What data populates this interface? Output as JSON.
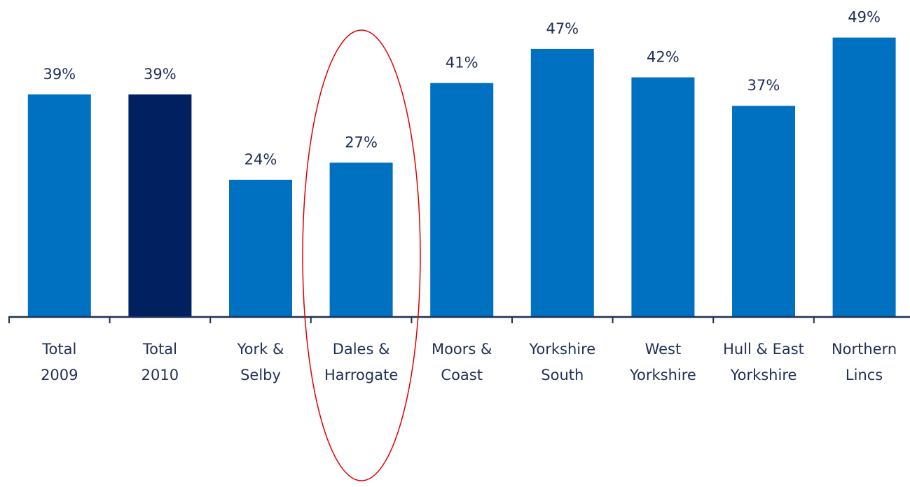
{
  "chart_data": {
    "type": "bar",
    "categories": [
      "Total\n2009",
      "Total\n2010",
      "York &\nSelby",
      "Dales &\nHarrogate",
      "Moors &\nCoast",
      "Yorkshire\nSouth",
      "West\nYorkshire",
      "Hull & East\nYorkshire",
      "Northern\nLincs"
    ],
    "values": [
      39,
      39,
      24,
      27,
      41,
      47,
      42,
      37,
      49
    ],
    "value_labels": [
      "39%",
      "39%",
      "24%",
      "27%",
      "41%",
      "47%",
      "42%",
      "37%",
      "49%"
    ],
    "colors": [
      "#0070c0",
      "#002060",
      "#0070c0",
      "#0070c0",
      "#0070c0",
      "#0070c0",
      "#0070c0",
      "#0070c0",
      "#0070c0"
    ],
    "ylim": [
      0,
      55.6
    ]
  }
}
